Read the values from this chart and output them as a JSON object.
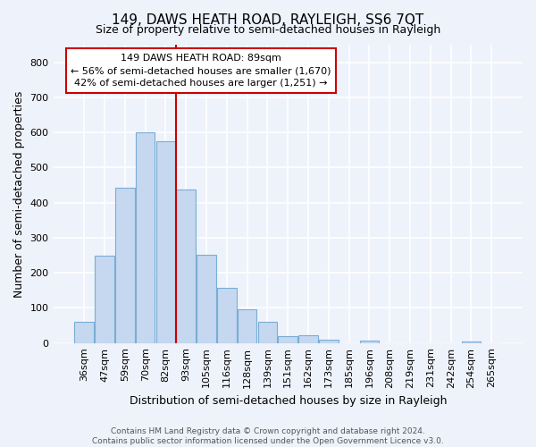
{
  "title": "149, DAWS HEATH ROAD, RAYLEIGH, SS6 7QT",
  "subtitle": "Size of property relative to semi-detached houses in Rayleigh",
  "xlabel": "Distribution of semi-detached houses by size in Rayleigh",
  "ylabel": "Number of semi-detached properties",
  "categories": [
    "36sqm",
    "47sqm",
    "59sqm",
    "70sqm",
    "82sqm",
    "93sqm",
    "105sqm",
    "116sqm",
    "128sqm",
    "139sqm",
    "151sqm",
    "162sqm",
    "173sqm",
    "185sqm",
    "196sqm",
    "208sqm",
    "219sqm",
    "231sqm",
    "242sqm",
    "254sqm",
    "265sqm"
  ],
  "values": [
    60,
    248,
    443,
    601,
    575,
    437,
    252,
    158,
    97,
    60,
    20,
    21,
    10,
    0,
    8,
    0,
    0,
    0,
    0,
    5,
    0
  ],
  "bar_color": "#c5d8f0",
  "bar_edge_color": "#7aadd4",
  "vline_x_index": 4.5,
  "vline_color": "#cc0000",
  "annotation_line1": "149 DAWS HEATH ROAD: 89sqm",
  "annotation_line2": "← 56% of semi-detached houses are smaller (1,670)",
  "annotation_line3": "42% of semi-detached houses are larger (1,251) →",
  "annotation_box_color": "#ffffff",
  "annotation_box_edge": "#cc0000",
  "ylim": [
    0,
    850
  ],
  "yticks": [
    0,
    100,
    200,
    300,
    400,
    500,
    600,
    700,
    800
  ],
  "footer_line1": "Contains HM Land Registry data © Crown copyright and database right 2024.",
  "footer_line2": "Contains public sector information licensed under the Open Government Licence v3.0.",
  "bg_color": "#eef2fb",
  "plot_bg_color": "#eef2fb",
  "grid_color": "#ffffff",
  "title_fontsize": 11,
  "subtitle_fontsize": 9,
  "axis_label_fontsize": 9,
  "tick_fontsize": 8,
  "footer_fontsize": 6.5,
  "annotation_fontsize": 8
}
